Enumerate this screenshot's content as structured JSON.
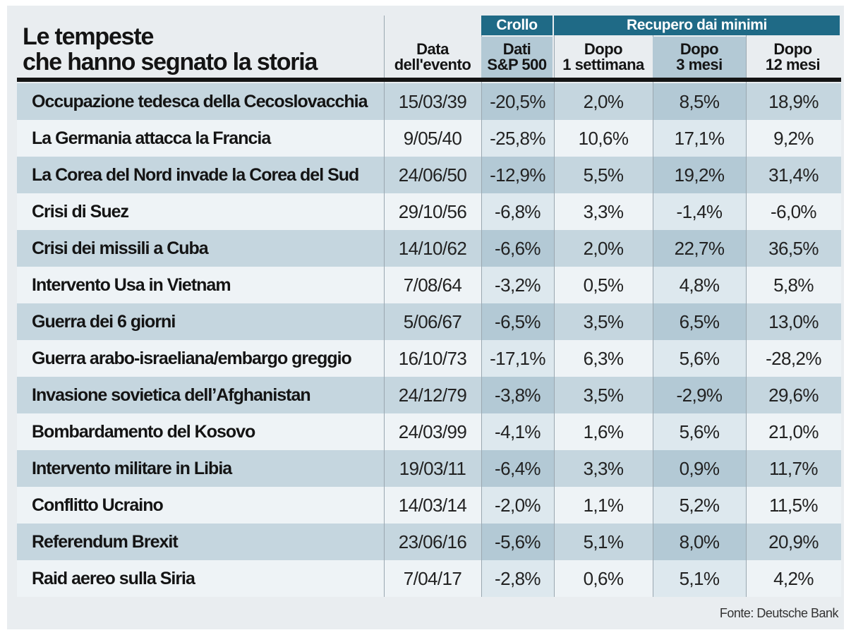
{
  "chart_data": {
    "type": "table",
    "title": "Le tempeste che hanno segnato la storia",
    "title_lines": [
      "Le tempeste",
      "che hanno segnato la storia"
    ],
    "group_headers": {
      "crash": "Crollo",
      "recovery": "Recupero dai minimi"
    },
    "columns": {
      "date": [
        "Data",
        "dell'evento"
      ],
      "sp500": [
        "Dati",
        "S&P 500"
      ],
      "week": [
        "Dopo",
        "1 settimana"
      ],
      "m3": [
        "Dopo",
        "3 mesi"
      ],
      "m12": [
        "Dopo",
        "12 mesi"
      ]
    },
    "rows": [
      {
        "event": "Occupazione tedesca della Cecoslovacchia",
        "date": "15/03/39",
        "sp500": "-20,5%",
        "week": "2,0%",
        "m3": "8,5%",
        "m12": "18,9%"
      },
      {
        "event": "La Germania attacca la Francia",
        "date": "9/05/40",
        "sp500": "-25,8%",
        "week": "10,6%",
        "m3": "17,1%",
        "m12": "9,2%"
      },
      {
        "event": "La Corea del Nord invade la Corea del Sud",
        "date": "24/06/50",
        "sp500": "-12,9%",
        "week": "5,5%",
        "m3": "19,2%",
        "m12": "31,4%"
      },
      {
        "event": "Crisi di Suez",
        "date": "29/10/56",
        "sp500": "-6,8%",
        "week": "3,3%",
        "m3": "-1,4%",
        "m12": "-6,0%"
      },
      {
        "event": "Crisi dei missili a Cuba",
        "date": "14/10/62",
        "sp500": "-6,6%",
        "week": "2,0%",
        "m3": "22,7%",
        "m12": "36,5%"
      },
      {
        "event": "Intervento Usa in Vietnam",
        "date": "7/08/64",
        "sp500": "-3,2%",
        "week": "0,5%",
        "m3": "4,8%",
        "m12": "5,8%"
      },
      {
        "event": "Guerra dei 6 giorni",
        "date": "5/06/67",
        "sp500": "-6,5%",
        "week": "3,5%",
        "m3": "6,5%",
        "m12": "13,0%"
      },
      {
        "event": "Guerra arabo-israeliana/embargo greggio",
        "date": "16/10/73",
        "sp500": "-17,1%",
        "week": "6,3%",
        "m3": "5,6%",
        "m12": "-28,2%"
      },
      {
        "event": "Invasione sovietica dell’Afghanistan",
        "date": "24/12/79",
        "sp500": "-3,8%",
        "week": "3,5%",
        "m3": "-2,9%",
        "m12": "29,6%"
      },
      {
        "event": "Bombardamento del Kosovo",
        "date": "24/03/99",
        "sp500": "-4,1%",
        "week": "1,6%",
        "m3": "5,6%",
        "m12": "21,0%"
      },
      {
        "event": "Intervento militare in Libia",
        "date": "19/03/11",
        "sp500": "-6,4%",
        "week": "3,3%",
        "m3": "0,9%",
        "m12": "11,7%"
      },
      {
        "event": "Conflitto Ucraino",
        "date": "14/03/14",
        "sp500": "-2,0%",
        "week": "1,1%",
        "m3": "5,2%",
        "m12": "11,5%"
      },
      {
        "event": "Referendum Brexit",
        "date": "23/06/16",
        "sp500": "-5,6%",
        "week": "5,1%",
        "m3": "8,0%",
        "m12": "20,9%"
      },
      {
        "event": "Raid aereo sulla Siria",
        "date": "7/04/17",
        "sp500": "-2,8%",
        "week": "0,6%",
        "m3": "5,1%",
        "m12": "4,2%"
      }
    ],
    "source": "Fonte: Deutsche Bank",
    "colors": {
      "band_dark": "#c5d6df",
      "band_light": "#eef3f6",
      "col_dark": "#b3c9d5",
      "col_light": "#dde8ee",
      "header_bg": "#1f6a86",
      "header_col_bg": "#b3c9d5"
    }
  }
}
